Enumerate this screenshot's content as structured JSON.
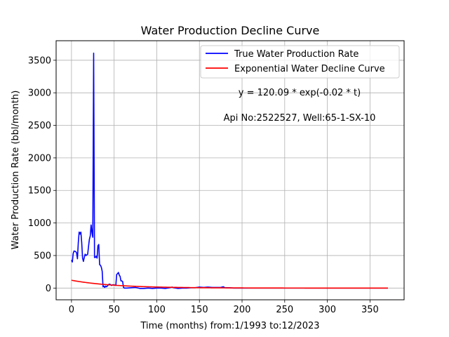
{
  "chart_data": {
    "type": "line",
    "title": "Water Production Decline Curve",
    "xlabel": "Time (months) from:1/1993 to:12/2023",
    "ylabel": "Water Production Rate (bbl/month)",
    "xlim": [
      -18,
      390
    ],
    "ylim": [
      -180,
      3800
    ],
    "xticks": [
      0,
      50,
      100,
      150,
      200,
      250,
      300,
      350
    ],
    "yticks": [
      0,
      500,
      1000,
      1500,
      2000,
      2500,
      3000,
      3500
    ],
    "grid": true,
    "legend_position": "top-right",
    "annotations": [
      "y = 120.09 * exp(-0.02 * t)",
      "Api No:2522527, Well:65-1-SX-10"
    ],
    "series": [
      {
        "name": "True Water Production Rate",
        "color": "#0000ff",
        "points": [
          [
            0,
            430
          ],
          [
            1,
            400
          ],
          [
            2,
            530
          ],
          [
            3,
            570
          ],
          [
            5,
            560
          ],
          [
            6,
            540
          ],
          [
            7,
            450
          ],
          [
            8,
            700
          ],
          [
            9,
            860
          ],
          [
            10,
            830
          ],
          [
            11,
            860
          ],
          [
            12,
            700
          ],
          [
            13,
            460
          ],
          [
            14,
            410
          ],
          [
            15,
            470
          ],
          [
            16,
            520
          ],
          [
            17,
            500
          ],
          [
            18,
            510
          ],
          [
            19,
            520
          ],
          [
            20,
            640
          ],
          [
            21,
            750
          ],
          [
            22,
            800
          ],
          [
            23,
            970
          ],
          [
            24,
            850
          ],
          [
            25,
            780
          ],
          [
            26,
            3610
          ],
          [
            27,
            470
          ],
          [
            28,
            470
          ],
          [
            29,
            490
          ],
          [
            30,
            460
          ],
          [
            31,
            650
          ],
          [
            32,
            670
          ],
          [
            33,
            360
          ],
          [
            34,
            350
          ],
          [
            35,
            320
          ],
          [
            36,
            260
          ],
          [
            37,
            20
          ],
          [
            38,
            30
          ],
          [
            39,
            10
          ],
          [
            40,
            30
          ],
          [
            41,
            20
          ],
          [
            42,
            30
          ],
          [
            44,
            60
          ],
          [
            45,
            60
          ],
          [
            46,
            50
          ],
          [
            47,
            40
          ],
          [
            48,
            50
          ],
          [
            50,
            50
          ],
          [
            52,
            40
          ],
          [
            53,
            210
          ],
          [
            54,
            220
          ],
          [
            55,
            240
          ],
          [
            56,
            200
          ],
          [
            57,
            180
          ],
          [
            58,
            110
          ],
          [
            59,
            110
          ],
          [
            60,
            100
          ],
          [
            61,
            10
          ],
          [
            62,
            0
          ],
          [
            65,
            0
          ],
          [
            70,
            5
          ],
          [
            75,
            10
          ],
          [
            80,
            -5
          ],
          [
            85,
            -5
          ],
          [
            90,
            0
          ],
          [
            95,
            -5
          ],
          [
            100,
            0
          ],
          [
            105,
            0
          ],
          [
            110,
            -5
          ],
          [
            115,
            5
          ],
          [
            118,
            15
          ],
          [
            120,
            5
          ],
          [
            125,
            -5
          ],
          [
            130,
            0
          ],
          [
            135,
            0
          ],
          [
            140,
            5
          ],
          [
            145,
            5
          ],
          [
            150,
            15
          ],
          [
            155,
            10
          ],
          [
            160,
            15
          ],
          [
            165,
            10
          ],
          [
            170,
            10
          ],
          [
            175,
            10
          ],
          [
            178,
            20
          ],
          [
            180,
            5
          ],
          [
            185,
            5
          ],
          [
            190,
            0
          ],
          [
            200,
            0
          ],
          [
            210,
            0
          ],
          [
            220,
            0
          ],
          [
            230,
            0
          ],
          [
            240,
            0
          ],
          [
            250,
            0
          ],
          [
            260,
            0
          ],
          [
            270,
            0
          ],
          [
            280,
            0
          ],
          [
            290,
            0
          ],
          [
            300,
            0
          ],
          [
            310,
            0
          ],
          [
            320,
            0
          ],
          [
            330,
            0
          ],
          [
            340,
            0
          ],
          [
            350,
            0
          ],
          [
            360,
            0
          ],
          [
            371,
            0
          ]
        ]
      },
      {
        "name": "Exponential Water Decline Curve",
        "color": "#ff0000",
        "a": 120.09,
        "b": -0.02,
        "x_range": [
          0,
          371
        ]
      }
    ]
  }
}
